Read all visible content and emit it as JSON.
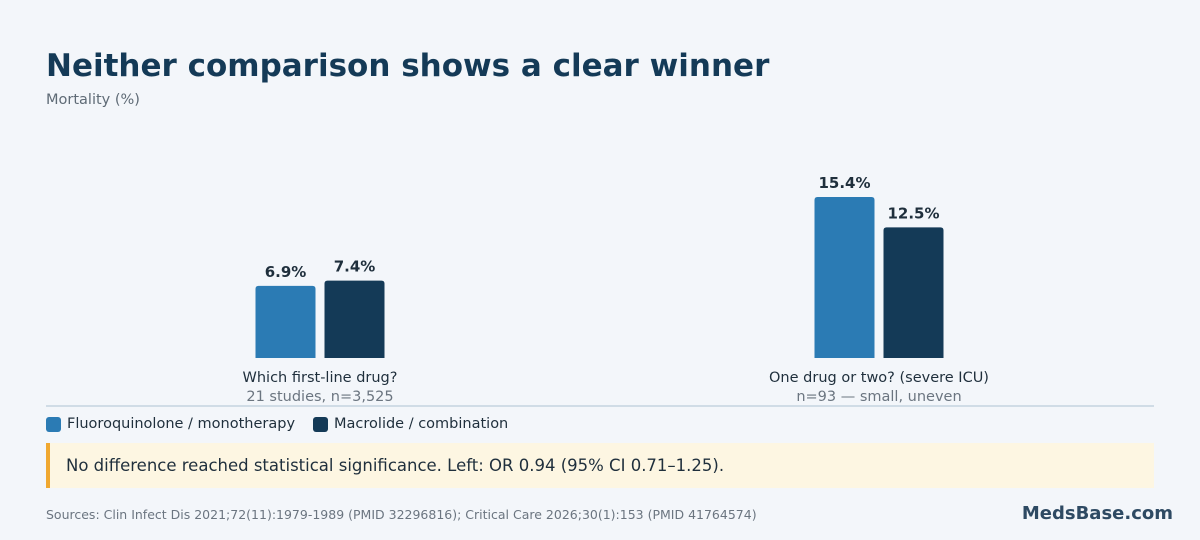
{
  "chart_data": {
    "type": "bar",
    "title": "Neither comparison shows a clear winner",
    "subtitle": "Mortality (%)",
    "ylabel": "Mortality (%)",
    "ylim": [
      0,
      16
    ],
    "grid": false,
    "legend_position": "bottom-left",
    "groups": [
      {
        "label": "Which first-line drug?",
        "sublabel": "21 studies, n=3,525",
        "values": [
          6.9,
          7.4
        ],
        "value_labels": [
          "6.9%",
          "7.4%"
        ]
      },
      {
        "label": "One drug or two? (severe ICU)",
        "sublabel": "n=93 — small, uneven",
        "values": [
          15.4,
          12.5
        ],
        "value_labels": [
          "15.4%",
          "12.5%"
        ]
      }
    ],
    "series": [
      {
        "name": "Fluoroquinolone / monotherapy",
        "color": "#2b7bb4"
      },
      {
        "name": "Macrolide / combination",
        "color": "#143a57"
      }
    ]
  },
  "note": "No difference reached statistical significance. Left: OR 0.94 (95% CI 0.71–1.25).",
  "sources": "Sources: Clin Infect Dis 2021;72(11):1979-1989 (PMID 32296816); Critical Care 2026;30(1):153 (PMID 41764574)",
  "brand": "MedsBase.com",
  "colors": {
    "background": "#f3f6fa",
    "title": "#143a57",
    "note_bg": "#fdf6e2",
    "note_accent": "#f0a830",
    "axis": "#c5d3df"
  }
}
